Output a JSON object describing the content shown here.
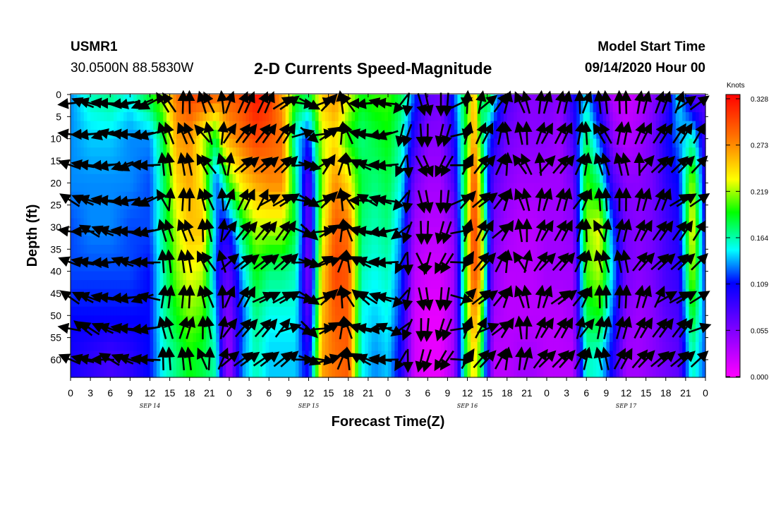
{
  "header": {
    "station": "USMR1",
    "coords": "30.0500N 88.5830W",
    "title": "2-D Currents Speed-Magnitude",
    "start_label": "Model Start Time",
    "start_value": "09/14/2020 Hour 00"
  },
  "colors": {
    "scale": [
      "#ff00ff",
      "#7f00ff",
      "#0000ff",
      "#00ffff",
      "#00ff00",
      "#ffff00",
      "#ff8000",
      "#ff0000"
    ]
  },
  "chart_data": {
    "type": "heatmap",
    "title": "2-D Currents Speed-Magnitude",
    "xlabel": "Forecast Time(Z)",
    "ylabel": "Depth (ft)",
    "x_ticks": [
      "0",
      "3",
      "6",
      "9",
      "12",
      "15",
      "18",
      "21",
      "0",
      "3",
      "6",
      "9",
      "12",
      "15",
      "18",
      "21",
      "0",
      "3",
      "6",
      "9",
      "12",
      "15",
      "18",
      "21",
      "0",
      "3",
      "6",
      "9",
      "12",
      "15",
      "18",
      "21",
      "0"
    ],
    "x_range_hours": [
      0,
      96
    ],
    "date_labels": [
      {
        "text": "SEP 14",
        "hour": 12
      },
      {
        "text": "SEP 15",
        "hour": 36
      },
      {
        "text": "SEP 16",
        "hour": 60
      },
      {
        "text": "SEP 17",
        "hour": 84
      }
    ],
    "y_ticks": [
      "0",
      "5",
      "10",
      "15",
      "20",
      "25",
      "30",
      "35",
      "40",
      "45",
      "50",
      "55",
      "60"
    ],
    "y_range": [
      0,
      64
    ],
    "colorbar": {
      "title": "Knots",
      "ticks": [
        "0.328",
        "0.273",
        "0.219",
        "0.164",
        "0.109",
        "0.055",
        "0.000"
      ],
      "range": [
        0.0,
        0.328
      ]
    },
    "depths": [
      0,
      10,
      20,
      30,
      40,
      50,
      60
    ],
    "speed_profiles": [
      {
        "hour": 0,
        "values": [
          0.13,
          0.13,
          0.13,
          0.12,
          0.12,
          0.11,
          0.1
        ]
      },
      {
        "hour": 3,
        "values": [
          0.16,
          0.14,
          0.13,
          0.13,
          0.12,
          0.11,
          0.09
        ]
      },
      {
        "hour": 6,
        "values": [
          0.17,
          0.14,
          0.13,
          0.13,
          0.12,
          0.11,
          0.08
        ]
      },
      {
        "hour": 9,
        "values": [
          0.15,
          0.13,
          0.13,
          0.12,
          0.12,
          0.11,
          0.09
        ]
      },
      {
        "hour": 12,
        "values": [
          0.19,
          0.13,
          0.12,
          0.12,
          0.11,
          0.11,
          0.11
        ]
      },
      {
        "hour": 14,
        "values": [
          0.22,
          0.18,
          0.17,
          0.17,
          0.16,
          0.16,
          0.15
        ]
      },
      {
        "hour": 16,
        "values": [
          0.28,
          0.26,
          0.24,
          0.22,
          0.21,
          0.19,
          0.17
        ]
      },
      {
        "hour": 18,
        "values": [
          0.3,
          0.27,
          0.26,
          0.25,
          0.23,
          0.21,
          0.19
        ]
      },
      {
        "hour": 20,
        "values": [
          0.3,
          0.22,
          0.23,
          0.25,
          0.22,
          0.2,
          0.18
        ]
      },
      {
        "hour": 22,
        "values": [
          0.29,
          0.18,
          0.12,
          0.13,
          0.12,
          0.14,
          0.16
        ]
      },
      {
        "hour": 23,
        "values": [
          0.28,
          0.24,
          0.15,
          0.1,
          0.08,
          0.07,
          0.08
        ]
      },
      {
        "hour": 24,
        "values": [
          0.29,
          0.26,
          0.2,
          0.11,
          0.07,
          0.05,
          0.04
        ]
      },
      {
        "hour": 26,
        "values": [
          0.3,
          0.28,
          0.24,
          0.18,
          0.14,
          0.12,
          0.13
        ]
      },
      {
        "hour": 28,
        "values": [
          0.32,
          0.3,
          0.26,
          0.22,
          0.19,
          0.17,
          0.16
        ]
      },
      {
        "hour": 30,
        "values": [
          0.31,
          0.29,
          0.27,
          0.22,
          0.17,
          0.15,
          0.14
        ]
      },
      {
        "hour": 32,
        "values": [
          0.26,
          0.28,
          0.27,
          0.22,
          0.17,
          0.15,
          0.14
        ]
      },
      {
        "hour": 34,
        "values": [
          0.2,
          0.15,
          0.17,
          0.18,
          0.16,
          0.15,
          0.14
        ]
      },
      {
        "hour": 36,
        "values": [
          0.18,
          0.11,
          0.07,
          0.06,
          0.05,
          0.07,
          0.1
        ]
      },
      {
        "hour": 38,
        "values": [
          0.25,
          0.22,
          0.21,
          0.22,
          0.24,
          0.25,
          0.26
        ]
      },
      {
        "hour": 40,
        "values": [
          0.27,
          0.24,
          0.27,
          0.29,
          0.3,
          0.29,
          0.28
        ]
      },
      {
        "hour": 42,
        "values": [
          0.23,
          0.19,
          0.24,
          0.28,
          0.29,
          0.29,
          0.29
        ]
      },
      {
        "hour": 44,
        "values": [
          0.19,
          0.17,
          0.18,
          0.17,
          0.16,
          0.15,
          0.15
        ]
      },
      {
        "hour": 46,
        "values": [
          0.2,
          0.18,
          0.17,
          0.16,
          0.15,
          0.14,
          0.13
        ]
      },
      {
        "hour": 48,
        "values": [
          0.2,
          0.19,
          0.18,
          0.17,
          0.16,
          0.15,
          0.14
        ]
      },
      {
        "hour": 50,
        "values": [
          0.18,
          0.16,
          0.15,
          0.13,
          0.12,
          0.11,
          0.1
        ]
      },
      {
        "hour": 52,
        "values": [
          0.12,
          0.09,
          0.06,
          0.04,
          0.03,
          0.02,
          0.02
        ]
      },
      {
        "hour": 54,
        "values": [
          0.07,
          0.05,
          0.04,
          0.03,
          0.02,
          0.01,
          0.01
        ]
      },
      {
        "hour": 56,
        "values": [
          0.06,
          0.05,
          0.04,
          0.03,
          0.02,
          0.01,
          0.01
        ]
      },
      {
        "hour": 58,
        "values": [
          0.12,
          0.1,
          0.08,
          0.05,
          0.04,
          0.04,
          0.04
        ]
      },
      {
        "hour": 60,
        "values": [
          0.2,
          0.2,
          0.21,
          0.22,
          0.22,
          0.21,
          0.2
        ]
      },
      {
        "hour": 61,
        "values": [
          0.26,
          0.27,
          0.3,
          0.31,
          0.3,
          0.27,
          0.24
        ]
      },
      {
        "hour": 62,
        "values": [
          0.16,
          0.19,
          0.22,
          0.24,
          0.26,
          0.22,
          0.19
        ]
      },
      {
        "hour": 63,
        "values": [
          0.2,
          0.13,
          0.12,
          0.14,
          0.13,
          0.11,
          0.1
        ]
      },
      {
        "hour": 64,
        "values": [
          0.15,
          0.1,
          0.07,
          0.06,
          0.05,
          0.04,
          0.03
        ]
      },
      {
        "hour": 66,
        "values": [
          0.08,
          0.06,
          0.05,
          0.04,
          0.03,
          0.03,
          0.03
        ]
      },
      {
        "hour": 68,
        "values": [
          0.06,
          0.05,
          0.04,
          0.03,
          0.03,
          0.03,
          0.04
        ]
      },
      {
        "hour": 70,
        "values": [
          0.05,
          0.05,
          0.04,
          0.03,
          0.03,
          0.03,
          0.04
        ]
      },
      {
        "hour": 72,
        "values": [
          0.06,
          0.05,
          0.04,
          0.04,
          0.04,
          0.03,
          0.03
        ]
      },
      {
        "hour": 74,
        "values": [
          0.05,
          0.04,
          0.04,
          0.04,
          0.04,
          0.03,
          0.03
        ]
      },
      {
        "hour": 76,
        "values": [
          0.1,
          0.08,
          0.06,
          0.05,
          0.04,
          0.04,
          0.03
        ]
      },
      {
        "hour": 78,
        "values": [
          0.14,
          0.18,
          0.2,
          0.21,
          0.2,
          0.18,
          0.16
        ]
      },
      {
        "hour": 80,
        "values": [
          0.08,
          0.12,
          0.17,
          0.23,
          0.22,
          0.19,
          0.15
        ]
      },
      {
        "hour": 82,
        "values": [
          0.03,
          0.05,
          0.08,
          0.12,
          0.14,
          0.12,
          0.1
        ]
      },
      {
        "hour": 84,
        "values": [
          0.02,
          0.03,
          0.05,
          0.06,
          0.06,
          0.05,
          0.04
        ]
      },
      {
        "hour": 86,
        "values": [
          0.03,
          0.04,
          0.05,
          0.05,
          0.05,
          0.04,
          0.04
        ]
      },
      {
        "hour": 88,
        "values": [
          0.05,
          0.06,
          0.06,
          0.06,
          0.06,
          0.05,
          0.05
        ]
      },
      {
        "hour": 90,
        "values": [
          0.08,
          0.1,
          0.09,
          0.08,
          0.08,
          0.07,
          0.06
        ]
      },
      {
        "hour": 92,
        "values": [
          0.15,
          0.13,
          0.11,
          0.1,
          0.09,
          0.08,
          0.07
        ]
      },
      {
        "hour": 94,
        "values": [
          0.07,
          0.16,
          0.22,
          0.24,
          0.22,
          0.19,
          0.16
        ]
      },
      {
        "hour": 96,
        "values": [
          0.07,
          0.08,
          0.09,
          0.1,
          0.11,
          0.12,
          0.12
        ]
      }
    ],
    "vector_hours": [
      0,
      2,
      3,
      5,
      6,
      8,
      9,
      11,
      12,
      14,
      15,
      17,
      18,
      20,
      21,
      23,
      24,
      26,
      27,
      29,
      30,
      32,
      33,
      35,
      36,
      38,
      39,
      41,
      42,
      44,
      45,
      47,
      48,
      50,
      51,
      53,
      54,
      56,
      57,
      59,
      60,
      62,
      63,
      65,
      66,
      68,
      69,
      71,
      72,
      74,
      75,
      77,
      78,
      80,
      81,
      83,
      84,
      86,
      87,
      89,
      90,
      92,
      93,
      95
    ],
    "vector_depths": [
      2,
      9,
      16,
      24,
      31,
      38,
      46,
      53,
      60
    ],
    "vector_direction_profile": [
      {
        "hour": 0,
        "deg": 200
      },
      {
        "hour": 6,
        "deg": 185
      },
      {
        "hour": 12,
        "deg": 170
      },
      {
        "hour": 14,
        "deg": 260
      },
      {
        "hour": 18,
        "deg": 265
      },
      {
        "hour": 22,
        "deg": 240
      },
      {
        "hour": 24,
        "deg": 300
      },
      {
        "hour": 28,
        "deg": 315
      },
      {
        "hour": 33,
        "deg": 320
      },
      {
        "hour": 36,
        "deg": 30
      },
      {
        "hour": 40,
        "deg": 300
      },
      {
        "hour": 44,
        "deg": 200
      },
      {
        "hour": 48,
        "deg": 180
      },
      {
        "hour": 52,
        "deg": 70
      },
      {
        "hour": 57,
        "deg": 110
      },
      {
        "hour": 60,
        "deg": 295
      },
      {
        "hour": 64,
        "deg": 320
      },
      {
        "hour": 68,
        "deg": 250
      },
      {
        "hour": 72,
        "deg": 300
      },
      {
        "hour": 76,
        "deg": 305
      },
      {
        "hour": 80,
        "deg": 260
      },
      {
        "hour": 84,
        "deg": 275
      },
      {
        "hour": 88,
        "deg": 305
      },
      {
        "hour": 92,
        "deg": 315
      },
      {
        "hour": 96,
        "deg": 320
      }
    ]
  }
}
